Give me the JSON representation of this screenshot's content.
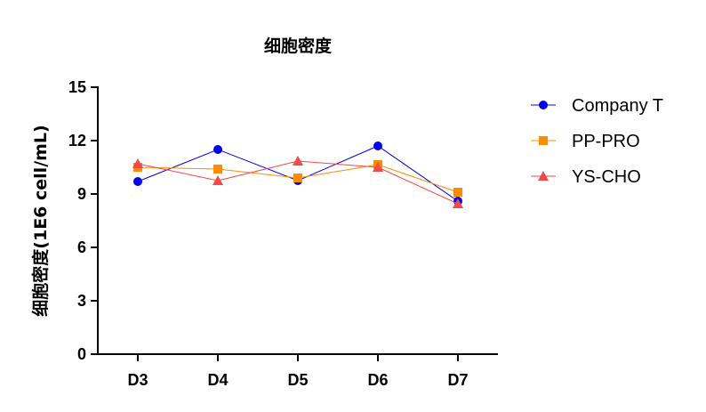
{
  "chart_data": {
    "type": "line",
    "title": "细胞密度",
    "xlabel": "",
    "ylabel": "细胞密度(1E6 cell/mL)",
    "categories": [
      "D3",
      "D4",
      "D5",
      "D6",
      "D7"
    ],
    "ylim": [
      0,
      15
    ],
    "yticks": [
      "0",
      "3",
      "6",
      "9",
      "12",
      "15"
    ],
    "grid": false,
    "legend_position": "right",
    "series": [
      {
        "name": "Company T",
        "values": [
          9.7,
          11.5,
          9.75,
          11.7,
          8.6
        ],
        "color": "#0000ee",
        "marker": "circle"
      },
      {
        "name": "PP-PRO",
        "values": [
          10.5,
          10.4,
          9.9,
          10.65,
          9.1
        ],
        "color": "#ff8c00",
        "marker": "square"
      },
      {
        "name": "YS-CHO",
        "values": [
          10.7,
          9.75,
          10.85,
          10.5,
          8.45
        ],
        "color": "#f04a4a",
        "marker": "triangle"
      }
    ]
  }
}
